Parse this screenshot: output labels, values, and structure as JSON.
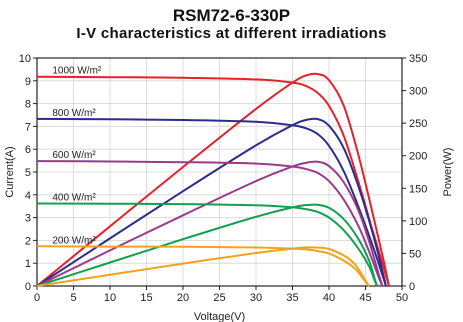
{
  "chart_data": {
    "type": "line",
    "title": "RSM72-6-330P",
    "subtitle": "I-V characteristics at different irradiations",
    "xlabel": "Voltage(V)",
    "ylabel_left": "Current(A)",
    "ylabel_right": "Power(W)",
    "xlim": [
      0,
      50
    ],
    "ylim_left": [
      0,
      10
    ],
    "ylim_right": [
      0,
      350
    ],
    "x_ticks": [
      "0",
      "5",
      "10",
      "15",
      "20",
      "25",
      "30",
      "35",
      "40",
      "45",
      "50"
    ],
    "y_left_ticks": [
      "0",
      "1",
      "2",
      "3",
      "4",
      "5",
      "6",
      "7",
      "8",
      "9",
      "10"
    ],
    "y_right_ticks": [
      "0",
      "50",
      "100",
      "150",
      "200",
      "250",
      "300",
      "350"
    ],
    "grid": true,
    "series": [
      {
        "name": "1000 W/m²",
        "color": "#e8202a",
        "iv": [
          [
            0,
            9.18
          ],
          [
            10,
            9.16
          ],
          [
            20,
            9.13
          ],
          [
            30,
            9.06
          ],
          [
            35,
            8.92
          ],
          [
            37,
            8.75
          ],
          [
            38.5,
            8.45
          ],
          [
            40,
            7.9
          ],
          [
            42,
            6.6
          ],
          [
            44,
            4.6
          ],
          [
            46,
            2.4
          ],
          [
            47.5,
            0.8
          ],
          [
            48.2,
            0
          ]
        ],
        "pv": [
          [
            0,
            0
          ],
          [
            10,
            91.6
          ],
          [
            20,
            182.6
          ],
          [
            30,
            271.8
          ],
          [
            35,
            312.2
          ],
          [
            37,
            323.8
          ],
          [
            38.5,
            325.3
          ],
          [
            40,
            316
          ],
          [
            42,
            277.2
          ],
          [
            44,
            202.4
          ],
          [
            46,
            110.4
          ],
          [
            47.5,
            38
          ],
          [
            48.2,
            0
          ]
        ]
      },
      {
        "name": "800 W/m²",
        "color": "#2b2c8c",
        "iv": [
          [
            0,
            7.33
          ],
          [
            10,
            7.31
          ],
          [
            20,
            7.28
          ],
          [
            30,
            7.2
          ],
          [
            35,
            7.05
          ],
          [
            37,
            6.9
          ],
          [
            38.5,
            6.65
          ],
          [
            40,
            6.15
          ],
          [
            42,
            5.05
          ],
          [
            44,
            3.5
          ],
          [
            46,
            1.75
          ],
          [
            47.3,
            0.5
          ],
          [
            47.8,
            0
          ]
        ],
        "pv": [
          [
            0,
            0
          ],
          [
            10,
            73.1
          ],
          [
            20,
            145.6
          ],
          [
            30,
            216
          ],
          [
            35,
            246.8
          ],
          [
            37,
            255.3
          ],
          [
            38.5,
            256
          ],
          [
            40,
            246
          ],
          [
            42,
            212.1
          ],
          [
            44,
            154
          ],
          [
            46,
            80.5
          ],
          [
            47.3,
            23.7
          ],
          [
            47.8,
            0
          ]
        ]
      },
      {
        "name": "600 W/m²",
        "color": "#9b3a8c",
        "iv": [
          [
            0,
            5.48
          ],
          [
            10,
            5.46
          ],
          [
            20,
            5.43
          ],
          [
            30,
            5.37
          ],
          [
            35,
            5.24
          ],
          [
            37,
            5.12
          ],
          [
            38.5,
            4.95
          ],
          [
            40,
            4.6
          ],
          [
            42,
            3.8
          ],
          [
            44,
            2.65
          ],
          [
            45.5,
            1.5
          ],
          [
            46.8,
            0.4
          ],
          [
            47.3,
            0
          ]
        ],
        "pv": [
          [
            0,
            0
          ],
          [
            10,
            54.6
          ],
          [
            20,
            108.6
          ],
          [
            30,
            161.1
          ],
          [
            35,
            183.4
          ],
          [
            37,
            189.4
          ],
          [
            38.5,
            190.6
          ],
          [
            40,
            184
          ],
          [
            42,
            159.6
          ],
          [
            44,
            116.6
          ],
          [
            45.5,
            68.3
          ],
          [
            46.8,
            18.7
          ],
          [
            47.3,
            0
          ]
        ]
      },
      {
        "name": "400 W/m²",
        "color": "#12a050",
        "iv": [
          [
            0,
            3.62
          ],
          [
            10,
            3.61
          ],
          [
            20,
            3.59
          ],
          [
            30,
            3.54
          ],
          [
            35,
            3.45
          ],
          [
            37,
            3.36
          ],
          [
            38.5,
            3.24
          ],
          [
            40,
            3.0
          ],
          [
            42,
            2.45
          ],
          [
            44,
            1.65
          ],
          [
            45.5,
            0.85
          ],
          [
            46.3,
            0.2
          ],
          [
            46.6,
            0
          ]
        ],
        "pv": [
          [
            0,
            0
          ],
          [
            10,
            36.1
          ],
          [
            20,
            71.8
          ],
          [
            30,
            106.2
          ],
          [
            35,
            120.8
          ],
          [
            37,
            124.3
          ],
          [
            38.5,
            124.7
          ],
          [
            40,
            120
          ],
          [
            42,
            102.9
          ],
          [
            44,
            72.6
          ],
          [
            45.5,
            38.7
          ],
          [
            46.3,
            9.3
          ],
          [
            46.6,
            0
          ]
        ]
      },
      {
        "name": "200 W/m²",
        "color": "#f4a21d",
        "iv": [
          [
            0,
            1.74
          ],
          [
            10,
            1.73
          ],
          [
            20,
            1.72
          ],
          [
            30,
            1.69
          ],
          [
            35,
            1.64
          ],
          [
            37,
            1.6
          ],
          [
            38.5,
            1.53
          ],
          [
            40,
            1.42
          ],
          [
            42,
            1.12
          ],
          [
            43.5,
            0.78
          ],
          [
            44.5,
            0.4
          ],
          [
            45.2,
            0.1
          ],
          [
            45.5,
            0
          ]
        ],
        "pv": [
          [
            0,
            0
          ],
          [
            10,
            17.3
          ],
          [
            20,
            34.4
          ],
          [
            30,
            50.7
          ],
          [
            35,
            57.4
          ],
          [
            37,
            59.2
          ],
          [
            38.5,
            58.9
          ],
          [
            40,
            56.8
          ],
          [
            42,
            47
          ],
          [
            43.5,
            33.9
          ],
          [
            44.5,
            17.8
          ],
          [
            45.2,
            4.5
          ],
          [
            45.5,
            0
          ]
        ]
      }
    ]
  }
}
